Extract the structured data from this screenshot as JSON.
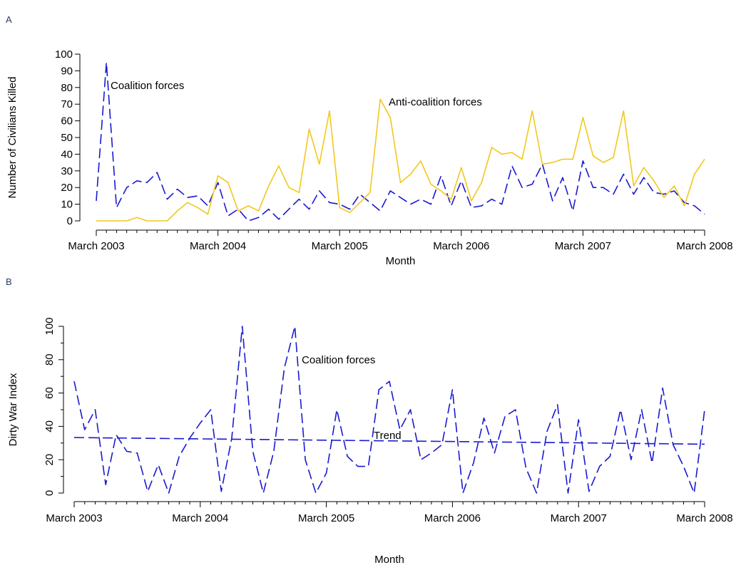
{
  "panels": {
    "a_letter": "A",
    "b_letter": "B"
  },
  "colors": {
    "coalition": "#1a1ad0",
    "anti_coalition": "#f2c81e",
    "axis": "#000000"
  },
  "chart_data": [
    {
      "type": "line",
      "panel": "A",
      "xlabel": "Month",
      "ylabel": "Number of Civilians Killed",
      "xlim": [
        0,
        60
      ],
      "ylim": [
        0,
        100
      ],
      "x_ticks": [
        {
          "x": 0,
          "label": "March 2003"
        },
        {
          "x": 12,
          "label": "March 2004"
        },
        {
          "x": 24,
          "label": "March 2005"
        },
        {
          "x": 36,
          "label": "March 2006"
        },
        {
          "x": 48,
          "label": "March 2007"
        },
        {
          "x": 60,
          "label": "March 2008"
        }
      ],
      "y_ticks": [
        0,
        10,
        20,
        30,
        40,
        50,
        60,
        70,
        80,
        90,
        100
      ],
      "series": [
        {
          "name": "Coalition forces",
          "style": "dashed",
          "color": "#1a1ad0",
          "values": [
            12,
            95,
            8,
            20,
            24,
            23,
            29,
            13,
            19,
            14,
            15,
            9,
            23,
            3,
            7,
            0,
            2,
            7,
            1,
            7,
            13,
            7,
            18,
            11,
            10,
            7,
            16,
            11,
            6,
            18,
            14,
            10,
            13,
            10,
            27,
            9,
            24,
            8,
            9,
            13,
            10,
            33,
            20,
            22,
            34,
            12,
            26,
            6,
            36,
            20,
            20,
            16,
            28,
            16,
            26,
            17,
            16,
            18,
            11,
            9,
            4
          ]
        },
        {
          "name": "Anti-coalition forces",
          "style": "solid",
          "color": "#f2c81e",
          "values": [
            0,
            0,
            0,
            0,
            2,
            0,
            0,
            0,
            6,
            11,
            8,
            4,
            27,
            23,
            6,
            9,
            6,
            21,
            33,
            20,
            17,
            55,
            34,
            66,
            8,
            5,
            11,
            17,
            73,
            62,
            23,
            28,
            36,
            22,
            18,
            13,
            32,
            12,
            23,
            44,
            40,
            41,
            37,
            66,
            34,
            35,
            37,
            37,
            62,
            39,
            35,
            38,
            66,
            21,
            32,
            24,
            14,
            21,
            9,
            28,
            37
          ]
        }
      ],
      "annotations": [
        "Coalition forces",
        "Anti-coalition forces"
      ]
    },
    {
      "type": "line",
      "panel": "B",
      "xlabel": "Month",
      "ylabel": "Dirty War Index",
      "xlim": [
        0,
        60
      ],
      "ylim": [
        0,
        100
      ],
      "x_ticks": [
        {
          "x": 0,
          "label": "March 2003"
        },
        {
          "x": 12,
          "label": "March 2004"
        },
        {
          "x": 24,
          "label": "March 2005"
        },
        {
          "x": 36,
          "label": "March 2006"
        },
        {
          "x": 48,
          "label": "March 2007"
        },
        {
          "x": 60,
          "label": "March 2008"
        }
      ],
      "y_ticks": [
        0,
        20,
        40,
        60,
        80,
        100
      ],
      "series": [
        {
          "name": "Coalition forces",
          "style": "dashed",
          "color": "#1a1ad0",
          "values": [
            67,
            38,
            50,
            5,
            35,
            25,
            24,
            1,
            17,
            0,
            22,
            33,
            42,
            50,
            1,
            33,
            100,
            25,
            0,
            25,
            75,
            100,
            20,
            0,
            12,
            50,
            22,
            16,
            16,
            62,
            67,
            38,
            50,
            20,
            24,
            29,
            62,
            0,
            18,
            45,
            24,
            46,
            50,
            15,
            0,
            37,
            53,
            0,
            44,
            1,
            16,
            22,
            50,
            20,
            50,
            18,
            63,
            29,
            16,
            0,
            50
          ]
        },
        {
          "name": "Trend",
          "style": "dashed",
          "color": "#1a1ad0",
          "values": [
            33.3,
            29.3
          ]
        }
      ],
      "annotations": [
        "Coalition forces",
        "Trend"
      ]
    }
  ]
}
